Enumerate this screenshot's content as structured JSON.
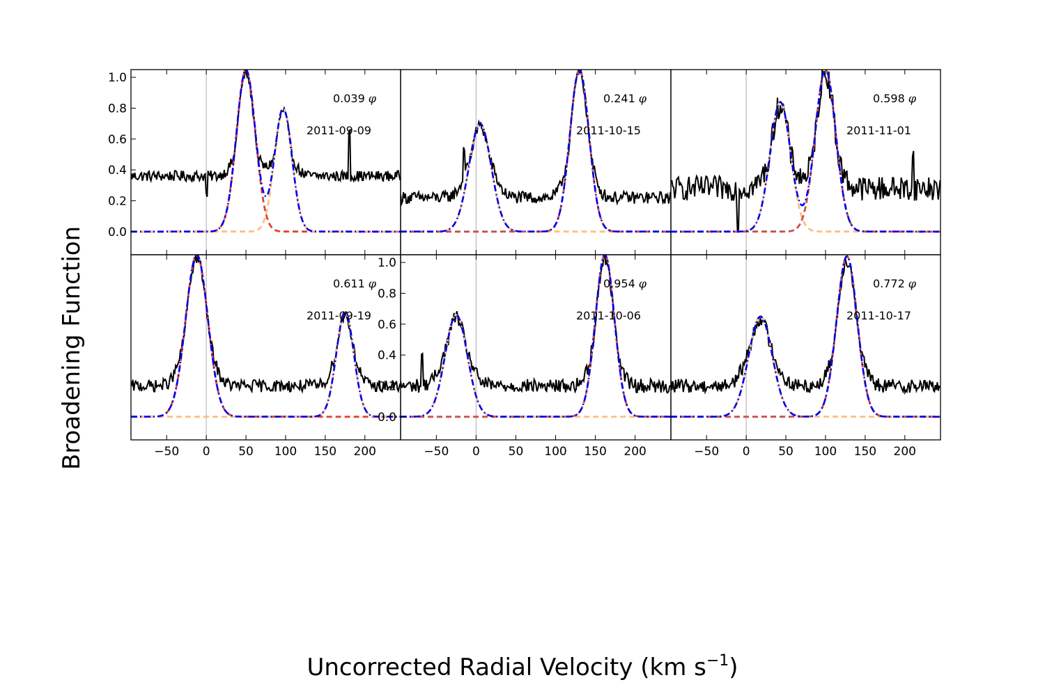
{
  "figure": {
    "ylabel": "Broadening Function",
    "xlabel_main": "Uncorrected Radial Velocity (km s",
    "xlabel_sup": "−1",
    "xlabel_close": ")"
  },
  "colors": {
    "observed": "#000000",
    "model_sum": "#0000ee",
    "component_primary": "#dd4433",
    "component_primary_alt": "#c8504a",
    "component_secondary": "#fdbf80",
    "zero_line": "#bbbbbb"
  },
  "chart_data": [
    {
      "type": "line",
      "panel": "top-1",
      "phase": "0.039",
      "phase_symbol": "φ",
      "date": "2011-09-09",
      "xlim": [
        -95,
        245
      ],
      "ylim": [
        -0.15,
        1.05
      ],
      "yticks": [
        "0.0",
        "0.2",
        "0.4",
        "0.6",
        "0.8",
        "1.0"
      ],
      "xticks": [],
      "baseline": 0.36,
      "noise": 0.035,
      "components": [
        {
          "mu": 50,
          "sigma": 12,
          "amp": 1.05,
          "color": "component_primary"
        },
        {
          "mu": 97,
          "sigma": 11,
          "amp": 0.8,
          "color": "component_secondary"
        }
      ],
      "spikes": [
        {
          "x": 180,
          "h": 0.3
        },
        {
          "x": 0,
          "h": -0.12
        }
      ]
    },
    {
      "type": "line",
      "panel": "top-2",
      "phase": "0.241",
      "phase_symbol": "φ",
      "date": "2011-10-15",
      "xlim": [
        -95,
        245
      ],
      "ylim": [
        -0.15,
        1.05
      ],
      "yticks": [],
      "xticks": [],
      "baseline": 0.22,
      "noise": 0.04,
      "components": [
        {
          "mu": 5,
          "sigma": 14,
          "amp": 0.7,
          "color": "component_secondary"
        },
        {
          "mu": 130,
          "sigma": 12,
          "amp": 1.05,
          "color": "component_primary_alt"
        }
      ],
      "spikes": [
        {
          "x": -15,
          "h": 0.2
        }
      ]
    },
    {
      "type": "line",
      "panel": "top-3",
      "phase": "0.598",
      "phase_symbol": "φ",
      "date": "2011-11-01",
      "xlim": [
        -95,
        245
      ],
      "ylim": [
        -0.15,
        1.05
      ],
      "yticks": [],
      "xticks": [],
      "baseline": 0.28,
      "noise": 0.08,
      "components": [
        {
          "mu": 43,
          "sigma": 13,
          "amp": 0.84,
          "color": "component_secondary"
        },
        {
          "mu": 100,
          "sigma": 13,
          "amp": 1.05,
          "color": "component_primary_alt"
        }
      ],
      "spikes": [
        {
          "x": -10,
          "h": -0.25
        },
        {
          "x": 210,
          "h": 0.2
        }
      ]
    },
    {
      "type": "line",
      "panel": "bottom-1",
      "phase": "0.611",
      "phase_symbol": "φ",
      "date": "2011-09-19",
      "xlim": [
        -95,
        245
      ],
      "ylim": [
        -0.15,
        1.05
      ],
      "yticks": [],
      "xticks": [
        "−50",
        "0",
        "50",
        "100",
        "150",
        "200"
      ],
      "baseline": 0.2,
      "noise": 0.04,
      "components": [
        {
          "mu": -12,
          "sigma": 14,
          "amp": 1.05,
          "color": "component_primary"
        },
        {
          "mu": 175,
          "sigma": 11,
          "amp": 0.68,
          "color": "component_secondary"
        }
      ],
      "spikes": []
    },
    {
      "type": "line",
      "panel": "bottom-2",
      "phase": "0.954",
      "phase_symbol": "φ",
      "date": "2011-10-06",
      "xlim": [
        -95,
        245
      ],
      "ylim": [
        -0.15,
        1.05
      ],
      "yticks": [
        "0.0",
        "0.2",
        "0.4",
        "0.6",
        "0.8",
        "1.0"
      ],
      "xticks": [
        "−50",
        "0",
        "50",
        "100",
        "150",
        "200"
      ],
      "baseline": 0.2,
      "noise": 0.045,
      "components": [
        {
          "mu": -25,
          "sigma": 14,
          "amp": 0.66,
          "color": "component_secondary"
        },
        {
          "mu": 162,
          "sigma": 12,
          "amp": 1.05,
          "color": "component_primary_alt"
        }
      ],
      "spikes": [
        {
          "x": -68,
          "h": 0.2
        }
      ]
    },
    {
      "type": "line",
      "panel": "bottom-3",
      "phase": "0.772",
      "phase_symbol": "φ",
      "date": "2011-10-17",
      "xlim": [
        -95,
        245
      ],
      "ylim": [
        -0.15,
        1.05
      ],
      "yticks": [],
      "xticks": [
        "−50",
        "0",
        "50",
        "100",
        "150",
        "200"
      ],
      "baseline": 0.2,
      "noise": 0.045,
      "components": [
        {
          "mu": 18,
          "sigma": 15,
          "amp": 0.65,
          "color": "component_secondary"
        },
        {
          "mu": 127,
          "sigma": 13,
          "amp": 1.04,
          "color": "component_primary_alt"
        }
      ],
      "spikes": []
    }
  ]
}
